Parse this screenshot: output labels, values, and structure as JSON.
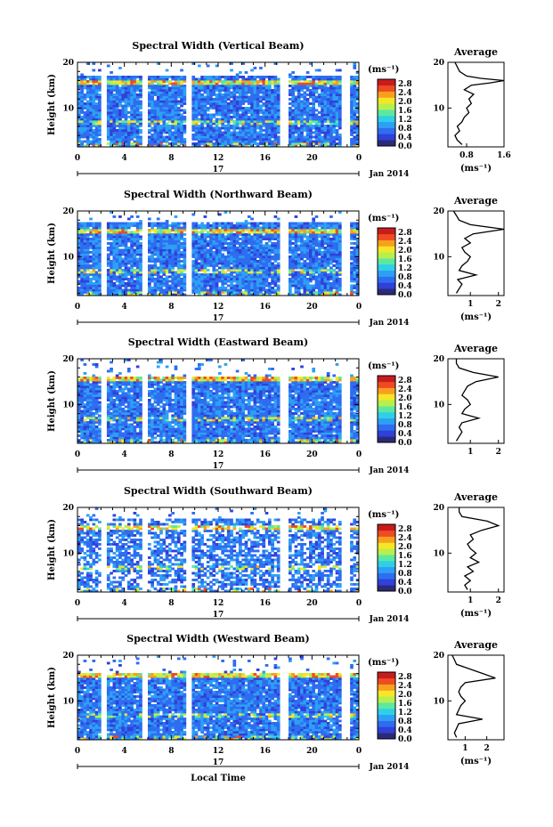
{
  "figure": {
    "x_axis_label": "Local Time",
    "date_label": "Jan 2014",
    "day_label": "17",
    "colors": [
      "#2a2a7a",
      "#3040d8",
      "#2e6df0",
      "#2da0f5",
      "#2fd0e6",
      "#5de8a0",
      "#b8ef4c",
      "#f5e628",
      "#f8a01e",
      "#ef4b22",
      "#c81c1c"
    ]
  },
  "panels": [
    {
      "title": "Spectral Width (Vertical Beam)",
      "ylabel": "Height (km)",
      "y_ticks": [
        "10",
        "20"
      ],
      "x_ticks": [
        "0",
        "4",
        "8",
        "12",
        "16",
        "20",
        "0"
      ],
      "colorbar": {
        "unit": "(ms⁻¹)",
        "ticks": [
          "2.8",
          "2.4",
          "2.0",
          "1.6",
          "1.2",
          "0.8",
          "0.4",
          "0.0"
        ]
      },
      "average": {
        "title": "Average",
        "unit": "(ms⁻¹)",
        "y_ticks": [
          "10",
          "20"
        ],
        "x_ticks": [
          "0.8",
          "1.6"
        ]
      }
    },
    {
      "title": "Spectral Width (Northward Beam)",
      "ylabel": "Height (km)",
      "y_ticks": [
        "10",
        "20"
      ],
      "x_ticks": [
        "0",
        "4",
        "8",
        "12",
        "16",
        "20",
        "0"
      ],
      "colorbar": {
        "unit": "(ms⁻¹)",
        "ticks": [
          "2.8",
          "2.4",
          "2.0",
          "1.6",
          "1.2",
          "0.8",
          "0.4",
          "0.0"
        ]
      },
      "average": {
        "title": "Average",
        "unit": "(ms⁻¹)",
        "y_ticks": [
          "10",
          "20"
        ],
        "x_ticks": [
          "1",
          "2"
        ]
      }
    },
    {
      "title": "Spectral Width (Eastward Beam)",
      "ylabel": "Height (km)",
      "y_ticks": [
        "10",
        "20"
      ],
      "x_ticks": [
        "0",
        "4",
        "8",
        "12",
        "16",
        "20",
        "0"
      ],
      "colorbar": {
        "unit": "(ms⁻¹)",
        "ticks": [
          "2.8",
          "2.4",
          "2.0",
          "1.6",
          "1.2",
          "0.8",
          "0.4",
          "0.0"
        ]
      },
      "average": {
        "title": "Average",
        "unit": "",
        "y_ticks": [
          "10",
          "20"
        ],
        "x_ticks": [
          "1",
          "2"
        ]
      }
    },
    {
      "title": "Spectral Width (Southward Beam)",
      "ylabel": "Height (km)",
      "y_ticks": [
        "10",
        "20"
      ],
      "x_ticks": [
        "0",
        "4",
        "8",
        "12",
        "16",
        "20",
        "0"
      ],
      "colorbar": {
        "unit": "(ms⁻¹)",
        "ticks": [
          "2.8",
          "2.4",
          "2.0",
          "1.6",
          "1.2",
          "0.8",
          "0.4",
          "0.0"
        ]
      },
      "average": {
        "title": "Average",
        "unit": "(ms⁻¹)",
        "y_ticks": [
          "10",
          "20"
        ],
        "x_ticks": [
          "1",
          "2"
        ]
      }
    },
    {
      "title": "Spectral Width (Westward Beam)",
      "ylabel": "Height (km)",
      "y_ticks": [
        "10",
        "20"
      ],
      "x_ticks": [
        "0",
        "4",
        "8",
        "12",
        "16",
        "20",
        "0"
      ],
      "colorbar": {
        "unit": "(ms⁻¹)",
        "ticks": [
          "2.8",
          "2.4",
          "2.0",
          "1.6",
          "1.2",
          "0.8",
          "0.4",
          "0.0"
        ]
      },
      "average": {
        "title": "Average",
        "unit": "(ms⁻¹)",
        "y_ticks": [
          "10",
          "20"
        ],
        "x_ticks": [
          "1",
          "2"
        ]
      }
    }
  ],
  "chart_data": [
    {
      "type": "heatmap",
      "title": "Spectral Width (Vertical Beam)",
      "ylabel": "Height (km)",
      "xlim": [
        0,
        24
      ],
      "ylim": [
        1.5,
        20
      ],
      "clim": [
        0,
        3.0
      ],
      "missing_time_bands": [
        [
          2.0,
          2.5
        ],
        [
          5.4,
          6.0
        ],
        [
          9.2,
          9.8
        ],
        [
          17.3,
          17.9
        ],
        [
          22.6,
          23.2
        ]
      ],
      "profile": {
        "x_lim": [
          0.4,
          1.6
        ],
        "heights": [
          2,
          3,
          4,
          5,
          6,
          7,
          8,
          9,
          10,
          11,
          12,
          13,
          14,
          15,
          15.5,
          16,
          16.5,
          17,
          18,
          19,
          20
        ],
        "values": [
          0.7,
          0.6,
          0.55,
          0.65,
          0.6,
          0.7,
          0.75,
          0.85,
          0.8,
          0.9,
          0.85,
          0.95,
          0.75,
          0.9,
          1.3,
          1.6,
          1.1,
          0.8,
          0.65,
          0.6,
          0.55
        ]
      }
    },
    {
      "type": "heatmap",
      "title": "Spectral Width (Northward Beam)",
      "ylabel": "Height (km)",
      "xlim": [
        0,
        24
      ],
      "ylim": [
        1.5,
        20
      ],
      "clim": [
        0,
        3.0
      ],
      "missing_time_bands": [
        [
          2.0,
          2.5
        ],
        [
          5.4,
          6.0
        ],
        [
          9.2,
          9.8
        ],
        [
          17.3,
          17.9
        ],
        [
          22.6,
          23.2
        ]
      ],
      "profile": {
        "x_lim": [
          0.2,
          2.2
        ],
        "heights": [
          2,
          3,
          4,
          5,
          6,
          7,
          8,
          9,
          10,
          11,
          12,
          13,
          14,
          15,
          16,
          17,
          18,
          19,
          20
        ],
        "values": [
          0.5,
          0.6,
          0.7,
          0.55,
          1.2,
          0.6,
          0.7,
          0.9,
          1.0,
          0.8,
          0.7,
          1.0,
          0.8,
          1.1,
          2.2,
          1.0,
          0.6,
          0.5,
          0.4
        ]
      }
    },
    {
      "type": "heatmap",
      "title": "Spectral Width (Eastward Beam)",
      "ylabel": "Height (km)",
      "xlim": [
        0,
        24
      ],
      "ylim": [
        1.5,
        20
      ],
      "clim": [
        0,
        3.0
      ],
      "missing_time_bands": [
        [
          2.0,
          2.5
        ],
        [
          5.4,
          6.0
        ],
        [
          9.2,
          9.8
        ],
        [
          17.3,
          17.9
        ],
        [
          22.6,
          23.2
        ]
      ],
      "profile": {
        "x_lim": [
          0.2,
          2.2
        ],
        "heights": [
          2,
          3,
          4,
          5,
          6,
          7,
          8,
          9,
          10,
          11,
          12,
          13,
          14,
          15,
          16,
          17,
          18,
          19,
          20
        ],
        "values": [
          0.5,
          0.6,
          0.7,
          0.6,
          0.7,
          1.3,
          0.7,
          0.8,
          1.0,
          0.9,
          0.7,
          0.8,
          0.9,
          1.2,
          2.0,
          1.1,
          0.6,
          0.5,
          0.5
        ]
      }
    },
    {
      "type": "heatmap",
      "title": "Spectral Width (Southward Beam)",
      "ylabel": "Height (km)",
      "xlim": [
        0,
        24
      ],
      "ylim": [
        1.5,
        20
      ],
      "clim": [
        0,
        3.0
      ],
      "missing_time_bands": [
        [
          2.0,
          2.5
        ],
        [
          5.4,
          6.0
        ],
        [
          9.2,
          9.8
        ],
        [
          17.3,
          17.9
        ],
        [
          22.6,
          23.2
        ]
      ],
      "profile": {
        "x_lim": [
          0.2,
          2.2
        ],
        "heights": [
          2,
          3,
          4,
          5,
          6,
          7,
          8,
          9,
          10,
          11,
          12,
          13,
          14,
          15,
          16,
          17,
          18,
          19,
          20
        ],
        "values": [
          0.9,
          0.8,
          1.0,
          0.8,
          1.1,
          0.9,
          1.3,
          1.0,
          1.2,
          1.0,
          0.9,
          1.1,
          1.0,
          1.4,
          2.0,
          1.6,
          0.7,
          0.6,
          0.6
        ]
      }
    },
    {
      "type": "heatmap",
      "title": "Spectral Width (Westward Beam)",
      "ylabel": "Height (km)",
      "xlim": [
        0,
        24
      ],
      "ylim": [
        1.5,
        20
      ],
      "clim": [
        0,
        3.0
      ],
      "missing_time_bands": [
        [
          2.0,
          2.5
        ],
        [
          5.4,
          6.0
        ],
        [
          9.2,
          9.8
        ],
        [
          17.3,
          17.9
        ],
        [
          22.6,
          23.2
        ]
      ],
      "profile": {
        "x_lim": [
          0.2,
          2.8
        ],
        "heights": [
          2,
          3,
          4,
          5,
          6,
          7,
          8,
          9,
          10,
          11,
          12,
          13,
          14,
          15,
          16,
          17,
          18,
          19,
          20
        ],
        "values": [
          0.6,
          0.5,
          0.6,
          0.7,
          1.8,
          0.6,
          0.7,
          0.8,
          1.0,
          0.8,
          0.7,
          0.8,
          1.0,
          2.4,
          1.8,
          1.2,
          0.6,
          0.5,
          0.4
        ]
      }
    }
  ]
}
